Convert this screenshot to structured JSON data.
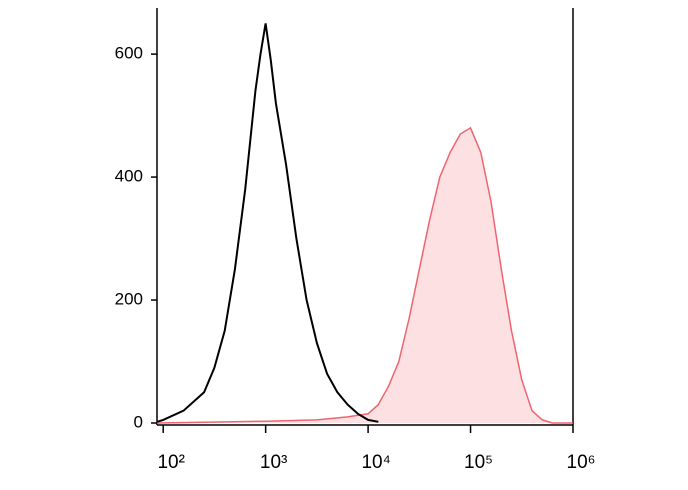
{
  "chart_data": {
    "type": "line",
    "log_x": true,
    "xlim": [
      87,
      1000000
    ],
    "xticks": [
      {
        "value": 100,
        "label": "10²"
      },
      {
        "value": 1000,
        "label": "10³"
      },
      {
        "value": 10000,
        "label": "10⁴"
      },
      {
        "value": 100000,
        "label": "10⁵"
      },
      {
        "value": 1000000,
        "label": "10⁶"
      }
    ],
    "ylim": [
      0,
      675
    ],
    "yticks": [
      0,
      200,
      400,
      600
    ],
    "series": [
      {
        "color": "#000000",
        "fill": null,
        "x": [
          87,
          100,
          158,
          251,
          316,
          398,
          501,
          631,
          794,
          891,
          1000,
          1122,
          1259,
          1585,
          1995,
          2512,
          3162,
          3981,
          5012,
          6310,
          7943,
          10000,
          12589
        ],
        "values": [
          2,
          5,
          20,
          50,
          90,
          150,
          250,
          380,
          540,
          600,
          650,
          590,
          520,
          420,
          300,
          200,
          130,
          80,
          50,
          30,
          15,
          5,
          2
        ]
      },
      {
        "color": "#f06470",
        "fill": "#fde0e2",
        "x": [
          87,
          1000,
          3162,
          6310,
          10000,
          12589,
          15849,
          19953,
          25119,
          31623,
          39811,
          50119,
          63096,
          79433,
          100000,
          125893,
          158489,
          199526,
          251189,
          316228,
          398107,
          501187,
          630957,
          1000000
        ],
        "values": [
          0,
          3,
          5,
          10,
          15,
          30,
          60,
          100,
          170,
          250,
          330,
          400,
          440,
          470,
          480,
          440,
          360,
          250,
          150,
          70,
          20,
          5,
          0,
          0
        ]
      }
    ]
  }
}
